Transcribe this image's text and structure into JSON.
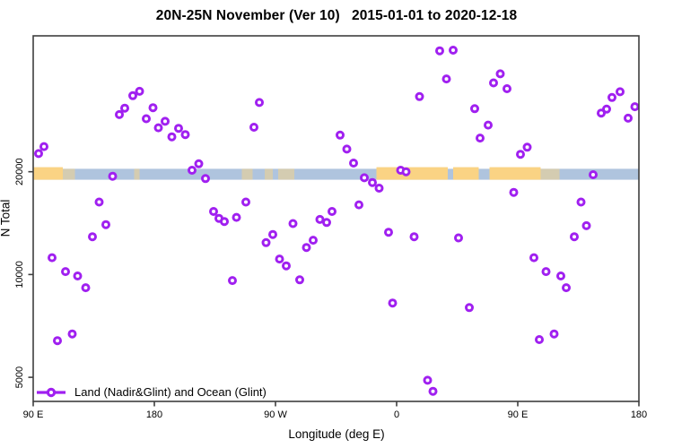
{
  "title": "20N-25N November (Ver 10)   2015-01-01 to 2020-12-18",
  "chart_data": {
    "type": "scatter",
    "title": "20N-25N November (Ver 10)   2015-01-01 to 2020-12-18",
    "xlabel": "Longitude (deg E)",
    "ylabel": "N Total",
    "x_axis": {
      "range": [
        90,
        540
      ],
      "note": "longitude axis wraps: 90E to 180 to 90W to 0 to 90E to 180",
      "ticks": [
        {
          "pos": 90,
          "label": "90 E"
        },
        {
          "pos": 180,
          "label": "180"
        },
        {
          "pos": 270,
          "label": "90 W"
        },
        {
          "pos": 360,
          "label": "0"
        },
        {
          "pos": 450,
          "label": "90 E"
        },
        {
          "pos": 540,
          "label": "180"
        }
      ]
    },
    "y_axis": {
      "scale": "log",
      "range": [
        4250,
        50000
      ],
      "ticks": [
        {
          "value": 5000,
          "label": "5000"
        },
        {
          "value": 10000,
          "label": "10000"
        },
        {
          "value": 20000,
          "label": "20000"
        }
      ]
    },
    "legend": {
      "label": "Land (Nadir&Glint) and Ocean (Glint)",
      "position": "bottom-left"
    },
    "grid": false,
    "colors": {
      "point": "#A020F0",
      "point_fill": "#ffffff",
      "axis": "#3f3f3f",
      "land": "#FAD384",
      "ocean": "#AFC4DE",
      "text": "#000000"
    },
    "map_strip": {
      "description": "20N-25N world map band: land (tan) vs ocean (blue) by longitude",
      "y_top_value": 20400,
      "y_bottom_value": 18950,
      "land_segments": [
        {
          "from": 90,
          "to": 112,
          "solid": true
        },
        {
          "from": 112,
          "to": 121,
          "solid": false
        },
        {
          "from": 165,
          "to": 169,
          "solid": false
        },
        {
          "from": 245,
          "to": 253,
          "solid": false
        },
        {
          "from": 262,
          "to": 268,
          "solid": false
        },
        {
          "from": 272,
          "to": 284,
          "solid": false
        },
        {
          "from": 345,
          "to": 398,
          "solid": true
        },
        {
          "from": 402,
          "to": 421,
          "solid": true
        },
        {
          "from": 429,
          "to": 467,
          "solid": true
        },
        {
          "from": 467,
          "to": 481,
          "solid": false
        }
      ]
    },
    "points": [
      [
        94,
        22600
      ],
      [
        98,
        23700
      ],
      [
        104,
        11200
      ],
      [
        108,
        6400
      ],
      [
        114,
        10200
      ],
      [
        119,
        6700
      ],
      [
        123,
        9900
      ],
      [
        129,
        9150
      ],
      [
        134,
        12900
      ],
      [
        139,
        16300
      ],
      [
        144,
        14000
      ],
      [
        149,
        19400
      ],
      [
        154,
        29400
      ],
      [
        158,
        30700
      ],
      [
        164,
        33400
      ],
      [
        169,
        34400
      ],
      [
        174,
        28600
      ],
      [
        179,
        30800
      ],
      [
        183,
        26900
      ],
      [
        188,
        28100
      ],
      [
        193,
        25300
      ],
      [
        198,
        26800
      ],
      [
        203,
        25700
      ],
      [
        208,
        20200
      ],
      [
        213,
        21100
      ],
      [
        218,
        19100
      ],
      [
        224,
        15300
      ],
      [
        228,
        14600
      ],
      [
        232,
        14300
      ],
      [
        241,
        14700
      ],
      [
        248,
        16300
      ],
      [
        238,
        9600
      ],
      [
        254,
        27000
      ],
      [
        258,
        31900
      ],
      [
        263,
        12400
      ],
      [
        268,
        13100
      ],
      [
        273,
        11100
      ],
      [
        278,
        10600
      ],
      [
        283,
        14100
      ],
      [
        288,
        9650
      ],
      [
        293,
        12000
      ],
      [
        298,
        12600
      ],
      [
        303,
        14500
      ],
      [
        308,
        14200
      ],
      [
        312,
        15300
      ],
      [
        318,
        25600
      ],
      [
        323,
        23300
      ],
      [
        328,
        21200
      ],
      [
        332,
        16000
      ],
      [
        336,
        19200
      ],
      [
        342,
        18600
      ],
      [
        347,
        17900
      ],
      [
        354,
        13300
      ],
      [
        357,
        8250
      ],
      [
        363,
        20200
      ],
      [
        367,
        20000
      ],
      [
        373,
        12900
      ],
      [
        377,
        33200
      ],
      [
        383,
        4900
      ],
      [
        387,
        4550
      ],
      [
        392,
        45200
      ],
      [
        397,
        37400
      ],
      [
        402,
        45400
      ],
      [
        406,
        12800
      ],
      [
        414,
        8000
      ],
      [
        418,
        30600
      ],
      [
        422,
        25100
      ],
      [
        428,
        27400
      ],
      [
        432,
        36400
      ],
      [
        437,
        38700
      ],
      [
        442,
        35000
      ],
      [
        447,
        17400
      ],
      [
        452,
        22500
      ],
      [
        457,
        23600
      ],
      [
        462,
        11200
      ],
      [
        466,
        6450
      ],
      [
        471,
        10200
      ],
      [
        477,
        6700
      ],
      [
        482,
        9900
      ],
      [
        486,
        9150
      ],
      [
        492,
        12900
      ],
      [
        497,
        16300
      ],
      [
        501,
        13900
      ],
      [
        506,
        19600
      ],
      [
        512,
        29700
      ],
      [
        516,
        30500
      ],
      [
        520,
        33000
      ],
      [
        526,
        34300
      ],
      [
        532,
        28700
      ],
      [
        537,
        31000
      ]
    ]
  }
}
